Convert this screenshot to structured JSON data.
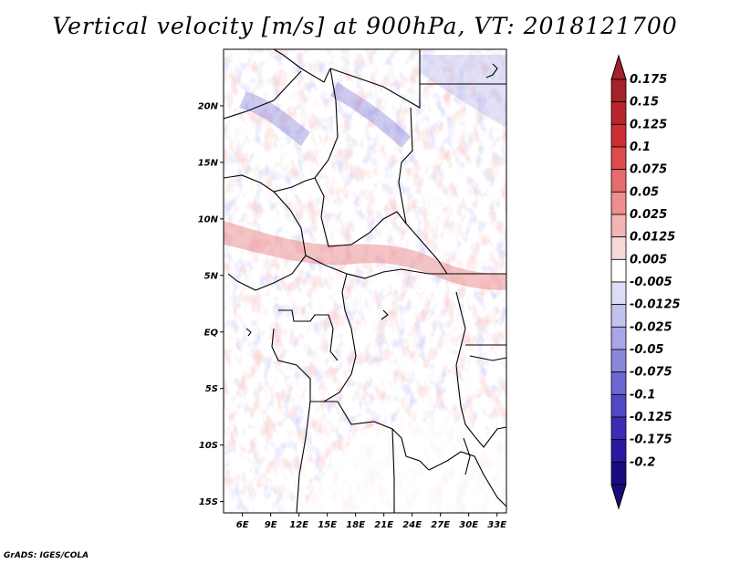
{
  "title": "Vertical velocity [m/s] at 900hPa, VT: 2018121700",
  "credit": "GrADS: IGES/COLA",
  "map": {
    "lat_ticks": [
      "20N",
      "15N",
      "10N",
      "5N",
      "EQ",
      "5S",
      "10S",
      "15S"
    ],
    "lat_values": [
      20,
      15,
      10,
      5,
      0,
      -5,
      -10,
      -15
    ],
    "lon_ticks": [
      "6E",
      "9E",
      "12E",
      "15E",
      "18E",
      "21E",
      "24E",
      "27E",
      "30E",
      "33E"
    ],
    "lon_values": [
      6,
      9,
      12,
      15,
      18,
      21,
      24,
      27,
      30,
      33
    ],
    "lat_range": [
      -16,
      25
    ],
    "lon_range": [
      4,
      34
    ]
  },
  "colorbar": {
    "labels": [
      "0.175",
      "0.15",
      "0.125",
      "0.1",
      "0.075",
      "0.05",
      "0.025",
      "0.0125",
      "0.005",
      "-0.005",
      "-0.0125",
      "-0.025",
      "-0.05",
      "-0.075",
      "-0.1",
      "-0.125",
      "-0.175",
      "-0.2"
    ],
    "colors": [
      "#a52228",
      "#b9252c",
      "#cc2e35",
      "#de4a4e",
      "#e56b6d",
      "#ec8f8e",
      "#f3b4b3",
      "#f9d8d8",
      "#ffffff",
      "#dcdcf5",
      "#c2c2ef",
      "#a8a6e6",
      "#8b88dc",
      "#6d68d0",
      "#5248c4",
      "#3b2db5",
      "#2a18a0",
      "#1a0b7e"
    ]
  }
}
